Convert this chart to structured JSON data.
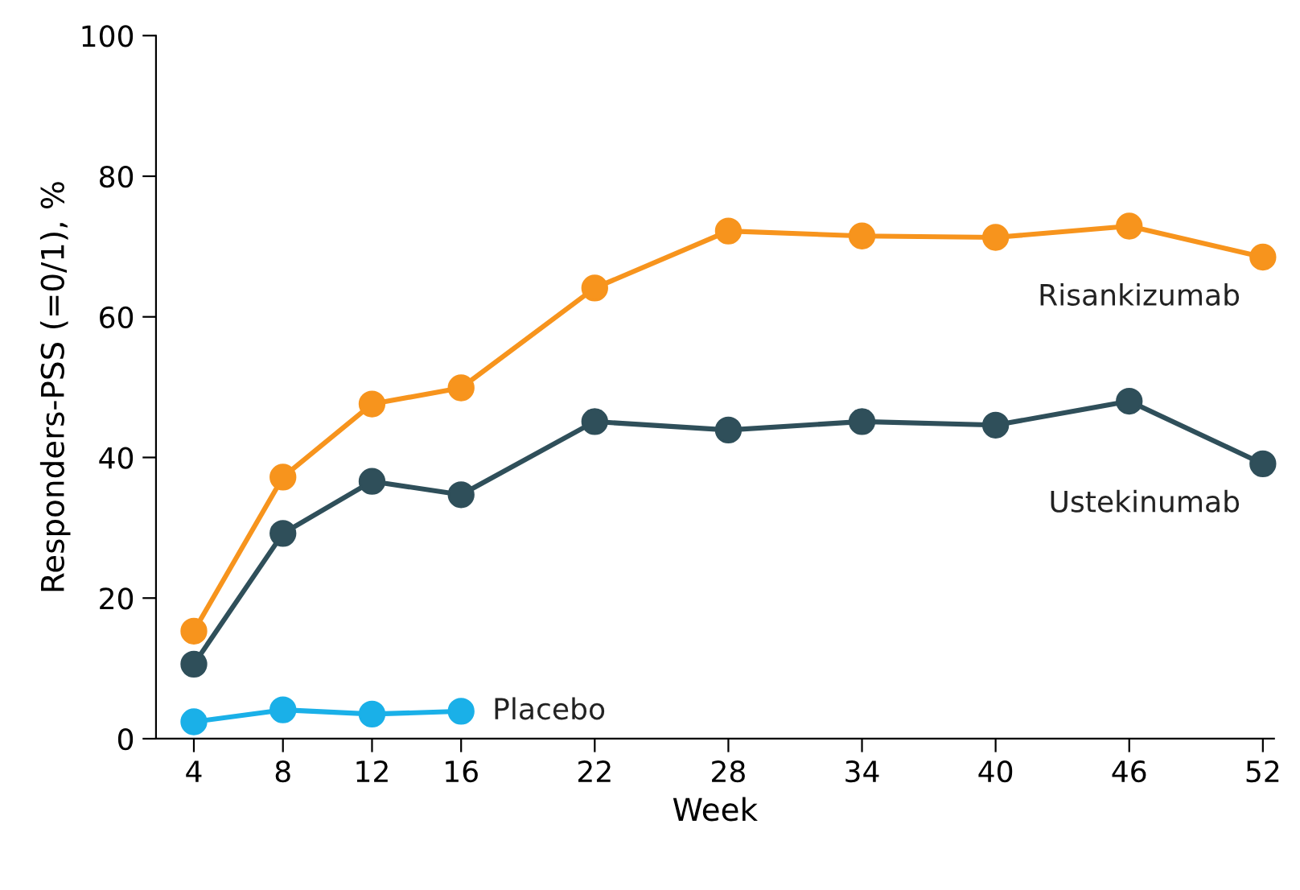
{
  "chart_data": {
    "type": "line",
    "xlabel": "Week",
    "ylabel": "Responders-PSS (=0/1), %",
    "x": [
      4,
      8,
      12,
      16,
      22,
      28,
      34,
      40,
      46,
      52
    ],
    "xlim": [
      2.3,
      52.5
    ],
    "xticks": [
      4,
      8,
      12,
      16,
      22,
      28,
      34,
      40,
      46,
      52
    ],
    "ylim": [
      0,
      100
    ],
    "yticks": [
      0,
      20,
      40,
      60,
      80,
      100
    ],
    "grid": false,
    "legend": false,
    "marker": "circle",
    "line_style": "solid",
    "series": [
      {
        "name": "Risankizumab",
        "color": "#f7941d",
        "values": [
          15.3,
          37.2,
          47.6,
          49.9,
          64.1,
          72.2,
          71.5,
          71.3,
          72.9,
          68.5
        ]
      },
      {
        "name": "Ustekinumab",
        "color": "#2f4f5a",
        "values": [
          10.6,
          29.2,
          36.6,
          34.7,
          45.1,
          43.9,
          45.1,
          44.6,
          48.0,
          39.1
        ]
      },
      {
        "name": "Placebo",
        "color": "#1ab0e8",
        "x": [
          4,
          8,
          12,
          16
        ],
        "values": [
          2.4,
          4.1,
          3.5,
          3.9
        ]
      }
    ]
  }
}
